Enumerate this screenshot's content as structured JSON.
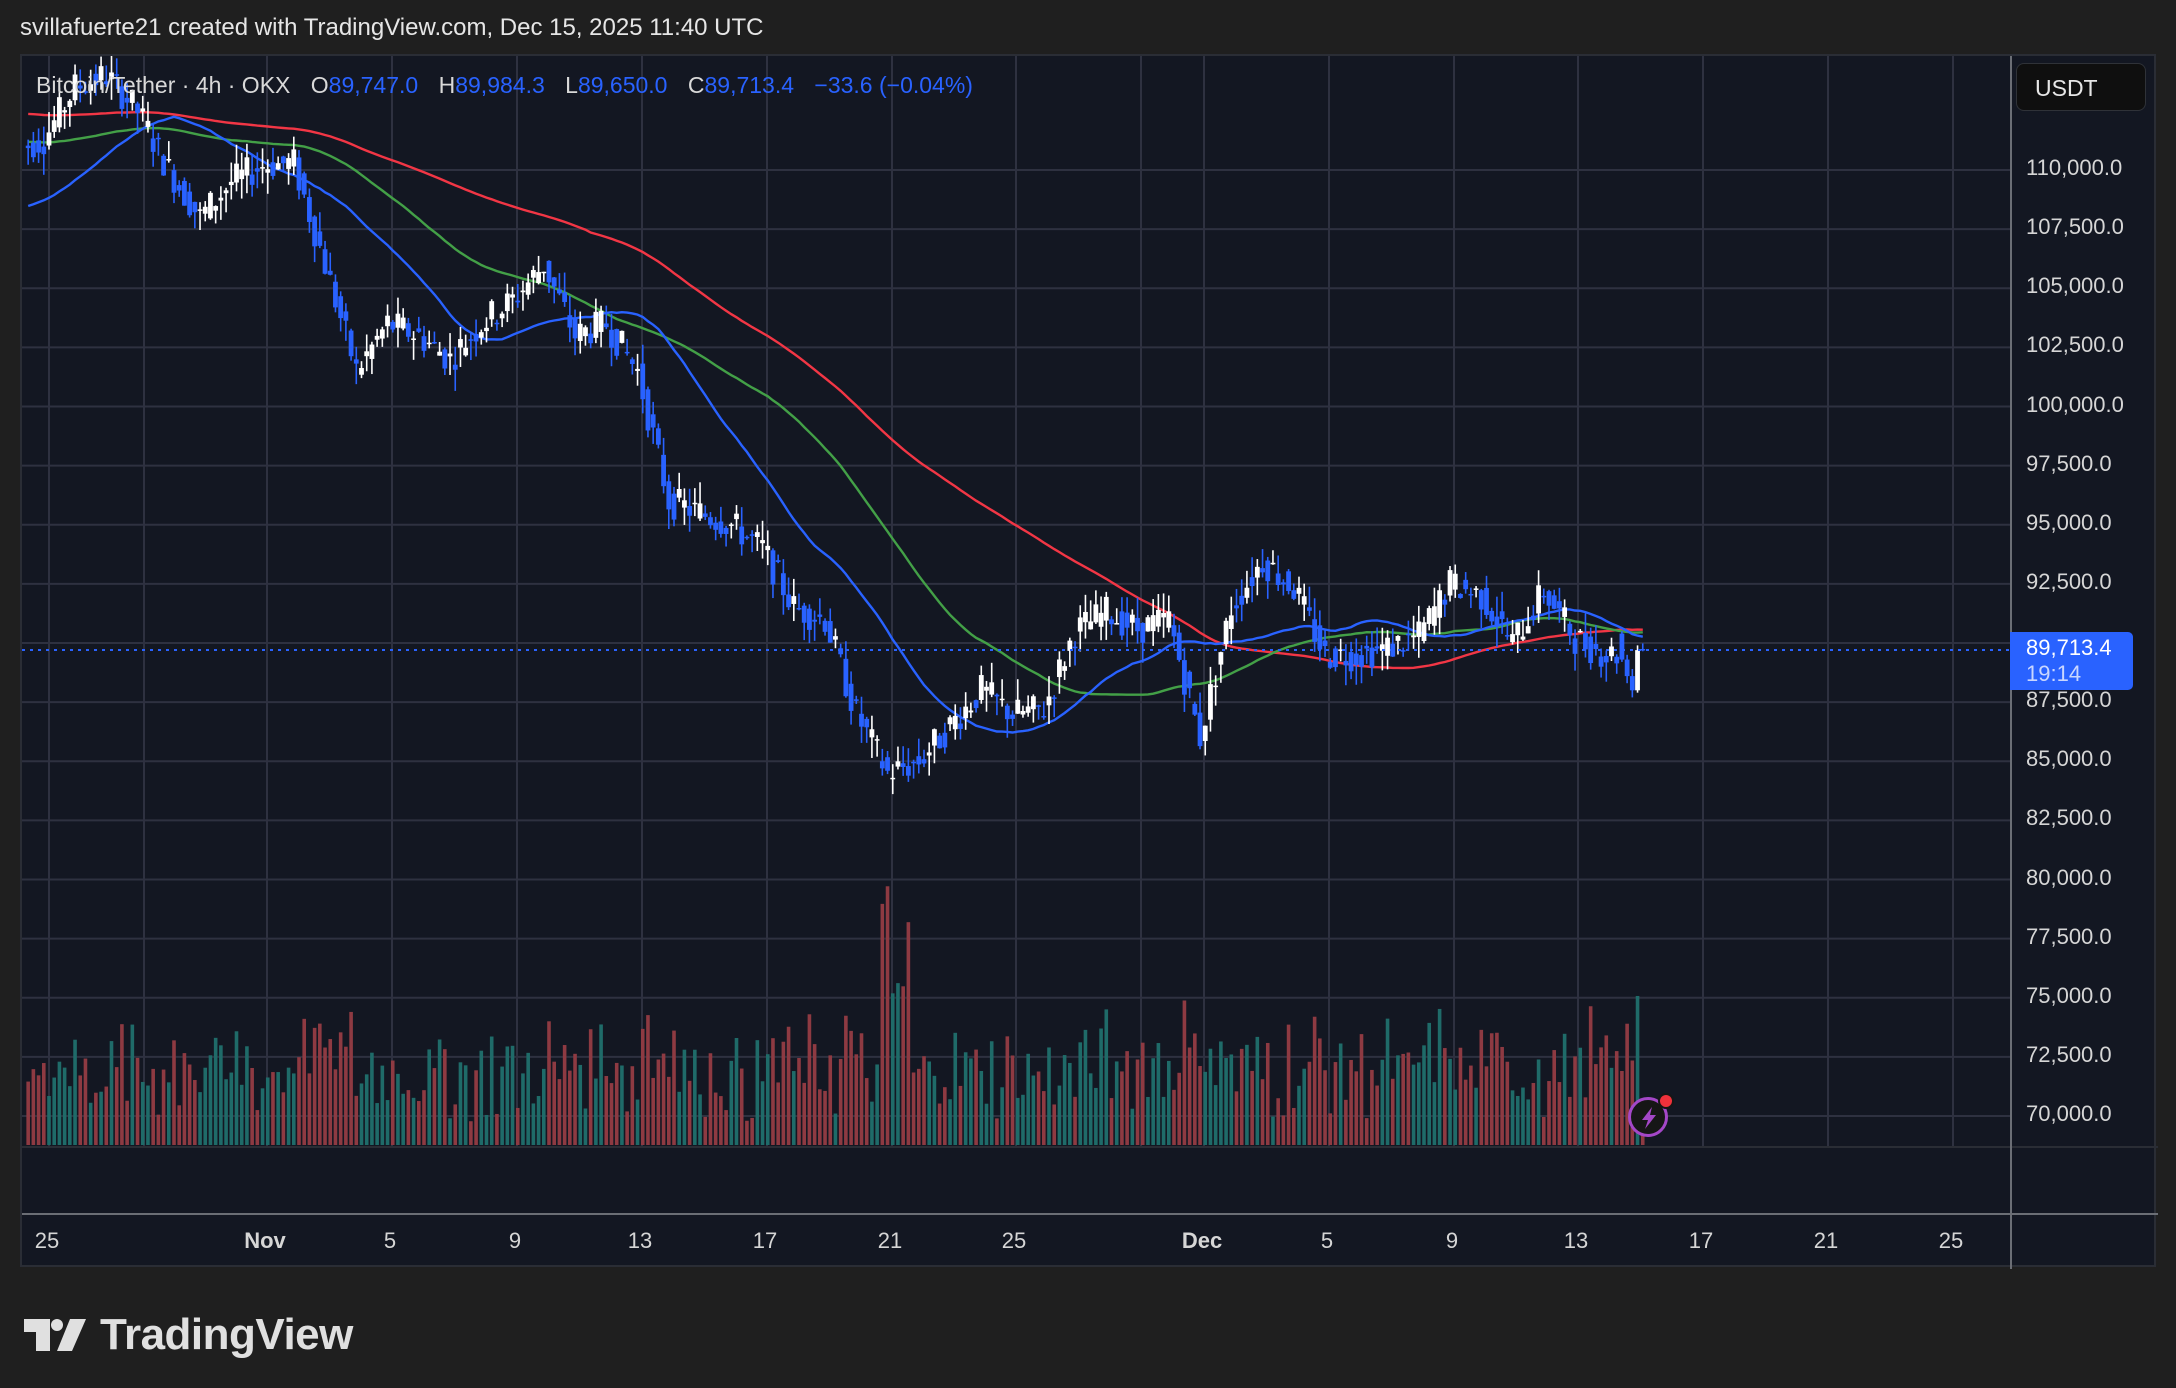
{
  "header": {
    "credit": "svillafuerte21 created with TradingView.com, Dec 15, 2025 11:40 UTC"
  },
  "legend": {
    "symbol": "Bitcoin/Tether · 4h · OKX",
    "open_label": "O",
    "open": "89,747.0",
    "high_label": "H",
    "high": "89,984.3",
    "low_label": "L",
    "low": "89,650.0",
    "close_label": "C",
    "close": "89,713.4",
    "change": "−33.6 (−0.04%)"
  },
  "currency_button": "USDT",
  "current_price": {
    "value": "89,713.4",
    "countdown": "19:14"
  },
  "price_axis": [
    "110,000.0",
    "107,500.0",
    "105,000.0",
    "102,500.0",
    "100,000.0",
    "97,500.0",
    "95,000.0",
    "92,500.0",
    "87,500.0",
    "85,000.0",
    "82,500.0",
    "80,000.0",
    "77,500.0",
    "75,000.0",
    "72,500.0",
    "70,000.0"
  ],
  "time_axis": [
    {
      "label": "25",
      "bold": false
    },
    {
      "label": "Nov",
      "bold": true
    },
    {
      "label": "5",
      "bold": false
    },
    {
      "label": "9",
      "bold": false
    },
    {
      "label": "13",
      "bold": false
    },
    {
      "label": "17",
      "bold": false
    },
    {
      "label": "21",
      "bold": false
    },
    {
      "label": "25",
      "bold": false
    },
    {
      "label": "Dec",
      "bold": true
    },
    {
      "label": "5",
      "bold": false
    },
    {
      "label": "9",
      "bold": false
    },
    {
      "label": "13",
      "bold": false
    },
    {
      "label": "17",
      "bold": false
    },
    {
      "label": "21",
      "bold": false
    },
    {
      "label": "25",
      "bold": false
    }
  ],
  "branding": {
    "logo_text": "TradingView"
  },
  "colors": {
    "background": "#1f1f1f",
    "pane": "#131722",
    "grid": "#2e3140",
    "up_candle": "#ffffff",
    "down_candle": "#2962ff",
    "ma_fast": "#2962ff",
    "ma_mid": "#43a047",
    "ma_slow": "#f23645",
    "vol_up": "#1f6b69",
    "vol_down": "#8e3a42",
    "price_line": "#2962ff"
  },
  "chart_data": {
    "type": "candlestick",
    "title": "Bitcoin/Tether · 4h · OKX",
    "xlabel": "",
    "ylabel": "USDT",
    "ylim": [
      68000,
      113000
    ],
    "x_range": [
      "Oct 24, 2025",
      "Dec 28, 2025"
    ],
    "grid": true,
    "last": {
      "open": 89747.0,
      "high": 89984.3,
      "low": 89650.0,
      "close": 89713.4,
      "change": -33.6,
      "change_pct": -0.04
    },
    "path_close_daily": {
      "x": [
        "Oct 24",
        "Oct 25",
        "Oct 26",
        "Oct 27",
        "Oct 28",
        "Oct 29",
        "Oct 30",
        "Oct 31",
        "Nov 1",
        "Nov 2",
        "Nov 3",
        "Nov 4",
        "Nov 5",
        "Nov 6",
        "Nov 7",
        "Nov 8",
        "Nov 9",
        "Nov 10",
        "Nov 11",
        "Nov 12",
        "Nov 13",
        "Nov 14",
        "Nov 15",
        "Nov 16",
        "Nov 17",
        "Nov 18",
        "Nov 19",
        "Nov 20",
        "Nov 21",
        "Nov 22",
        "Nov 23",
        "Nov 24",
        "Nov 25",
        "Nov 26",
        "Nov 27",
        "Nov 28",
        "Nov 29",
        "Nov 30",
        "Dec 1",
        "Dec 2",
        "Dec 3",
        "Dec 4",
        "Dec 5",
        "Dec 6",
        "Dec 7",
        "Dec 8",
        "Dec 9",
        "Dec 10",
        "Dec 11",
        "Dec 12",
        "Dec 13",
        "Dec 14",
        "Dec 15"
      ],
      "close": [
        110800,
        111300,
        113500,
        114000,
        112500,
        110000,
        108000,
        109500,
        110200,
        110300,
        106000,
        101500,
        103500,
        103000,
        102000,
        103500,
        104500,
        106000,
        103000,
        103500,
        101500,
        96000,
        95500,
        95000,
        94000,
        91500,
        91000,
        87000,
        84500,
        85000,
        86500,
        88000,
        87000,
        87200,
        90500,
        91300,
        90600,
        91000,
        86000,
        91500,
        93500,
        92300,
        89500,
        89500,
        89800,
        90300,
        92500,
        92000,
        90000,
        92200,
        90200,
        89500,
        89713
      ]
    },
    "moving_averages": [
      {
        "name": "MA fast (blue)",
        "color": "#2962ff",
        "start": 108300,
        "end": 90600
      },
      {
        "name": "MA mid (green)",
        "color": "#43a047",
        "start": 111200,
        "end": 90400
      },
      {
        "name": "MA slow (red)",
        "color": "#f23645",
        "start": 112400,
        "end": 91000
      }
    ],
    "volume": {
      "pane": "bottom overlay",
      "colors": [
        "#1f6b69",
        "#8e3a42"
      ],
      "peak_date": "Nov 21"
    }
  }
}
